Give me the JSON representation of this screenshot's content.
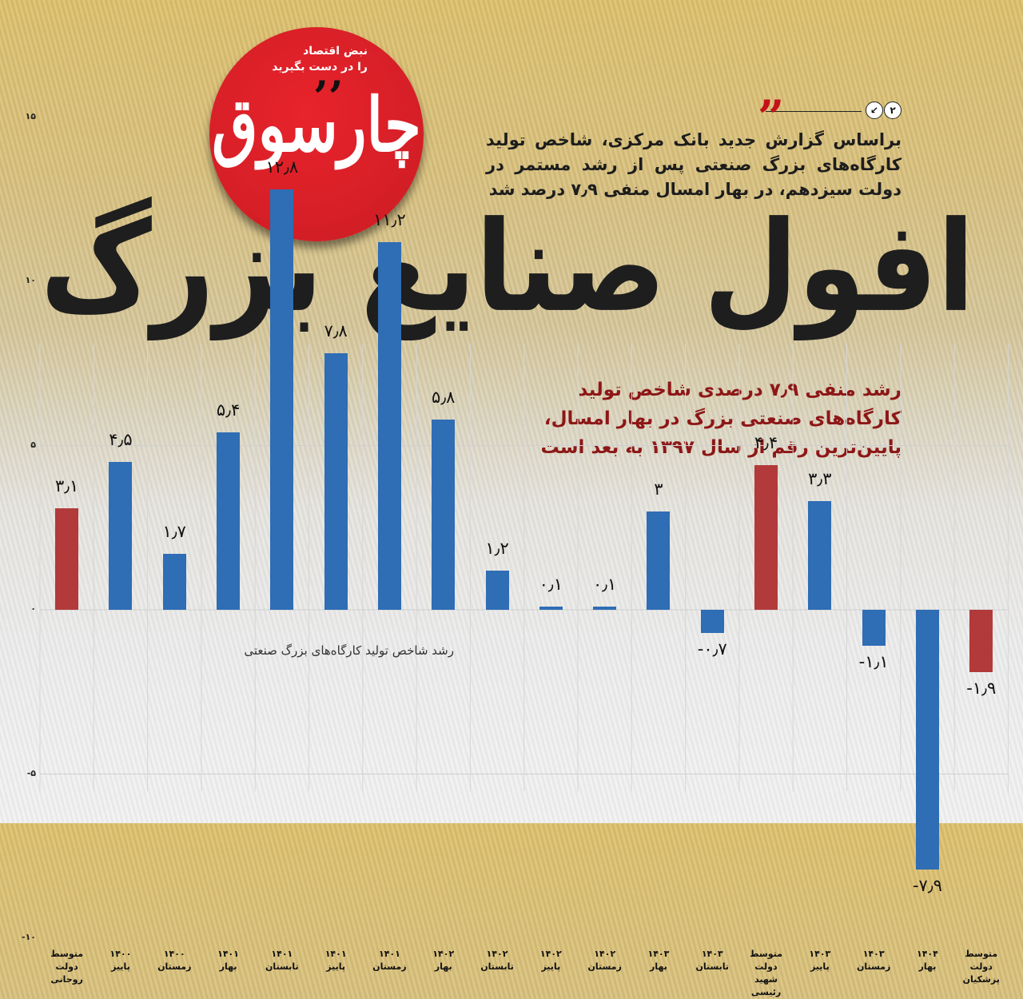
{
  "logo": {
    "tagline_line1": "نبض اقتصاد",
    "tagline_line2": "را در دست بگیرید",
    "brand": "چارسوق",
    "brand_quote": "’’"
  },
  "pager": {
    "page": "۲",
    "arrow_icon": "↙"
  },
  "quote_mark": "”",
  "lead": "براساس گزارش جدید بانک مرکزی، شاخص تولید کارگاه‌های بزرگ صنعتی پس از رشد مستمر در دولت سیزدهم، در بهار امسال منفی ۷٫۹ درصد شد",
  "headline": "افول صنایع بزرگ",
  "subhead": "رشد منفی ۷٫۹ درصدی شاخص تولید کارگاه‌های صنعتی بزرگ در بهار امسال، پایین‌ترین رقم از سال ۱۳۹۷ به بعد است",
  "colors": {
    "blue": "#2f6db5",
    "red": "#b23a3a",
    "headline": "#1e1e1e",
    "subhead": "#8d1717",
    "logo_red": "#d71f27"
  },
  "chart_data": {
    "type": "bar",
    "title": "افول صنایع بزرگ",
    "series_label": "رشد شاخص تولید کارگاه‌های بزرگ صنعتی",
    "xlabel": "",
    "ylabel": "",
    "ylim": [
      -10,
      15
    ],
    "yticks": [
      15,
      10,
      5,
      0,
      -5,
      -10
    ],
    "ytick_labels": [
      "۱۵",
      "۱۰",
      "۵",
      "۰",
      "-۵",
      "-۱۰"
    ],
    "grid": true,
    "legend": "none",
    "categories": [
      "متوسط دولت روحانی",
      "۱۴۰۰ پاییز",
      "۱۴۰۰ زمستان",
      "۱۴۰۱ بهار",
      "۱۴۰۱ تابستان",
      "۱۴۰۱ پاییز",
      "۱۴۰۱ زمستان",
      "۱۴۰۲ بهار",
      "۱۴۰۲ تابستان",
      "۱۴۰۲ پاییز",
      "۱۴۰۲ زمستان",
      "۱۴۰۳ بهار",
      "۱۴۰۳ تابستان",
      "متوسط دولت شهید رئیسی",
      "۱۴۰۳ پاییز",
      "۱۴۰۳ زمستان",
      "۱۴۰۴ بهار",
      "متوسط دولت پزشکیان"
    ],
    "category_lines": [
      [
        "متوسط",
        "دولت روحانی"
      ],
      [
        "۱۴۰۰",
        "پاییز"
      ],
      [
        "۱۴۰۰",
        "زمستان"
      ],
      [
        "۱۴۰۱",
        "بهار"
      ],
      [
        "۱۴۰۱",
        "تابستان"
      ],
      [
        "۱۴۰۱",
        "پاییز"
      ],
      [
        "۱۴۰۱",
        "زمستان"
      ],
      [
        "۱۴۰۲",
        "بهار"
      ],
      [
        "۱۴۰۲",
        "تابستان"
      ],
      [
        "۱۴۰۲",
        "پاییز"
      ],
      [
        "۱۴۰۲",
        "زمستان"
      ],
      [
        "۱۴۰۳",
        "بهار"
      ],
      [
        "۱۴۰۳",
        "تابستان"
      ],
      [
        "متوسط دولت",
        "شهید رئیسی"
      ],
      [
        "۱۴۰۳",
        "پاییز"
      ],
      [
        "۱۴۰۳",
        "زمستان"
      ],
      [
        "۱۴۰۴",
        "بهار"
      ],
      [
        "متوسط",
        "دولت پزشکیان"
      ]
    ],
    "values": [
      3.1,
      4.5,
      1.7,
      5.4,
      12.8,
      7.8,
      11.2,
      5.8,
      1.2,
      0.1,
      0.1,
      3,
      -0.7,
      4.4,
      3.3,
      -1.1,
      -7.9,
      -1.9
    ],
    "value_labels": [
      "۳٫۱",
      "۴٫۵",
      "۱٫۷",
      "۵٫۴",
      "۱۲٫۸",
      "۷٫۸",
      "۱۱٫۲",
      "۵٫۸",
      "۱٫۲",
      "۰٫۱",
      "۰٫۱",
      "۳",
      "-۰٫۷",
      "۴٫۴",
      "۳٫۳",
      "-۱٫۱",
      "-۷٫۹",
      "-۱٫۹"
    ],
    "bar_colors": [
      "red",
      "blue",
      "blue",
      "blue",
      "blue",
      "blue",
      "blue",
      "blue",
      "blue",
      "blue",
      "blue",
      "blue",
      "blue",
      "red",
      "blue",
      "blue",
      "blue",
      "red"
    ]
  }
}
